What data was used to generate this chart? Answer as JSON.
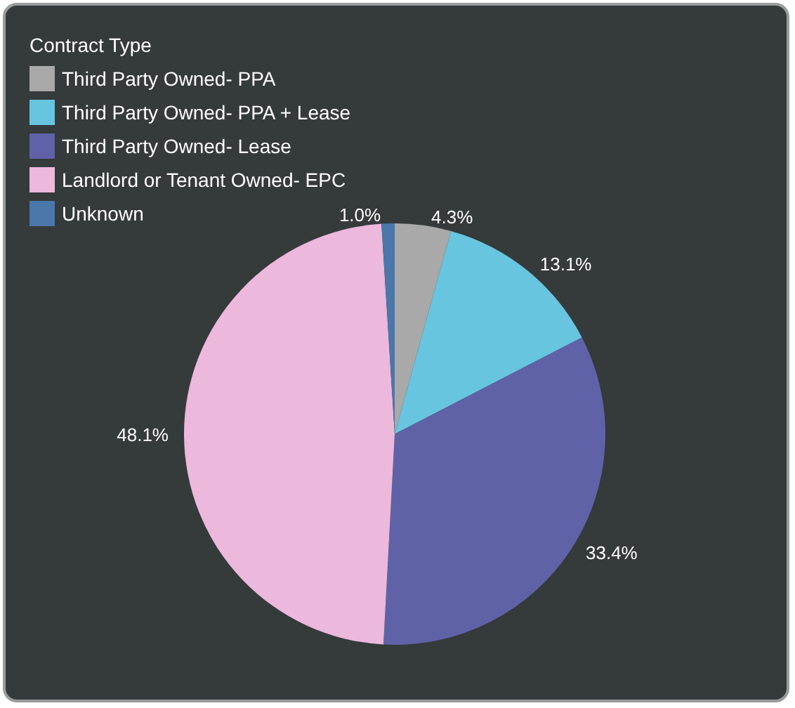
{
  "chart_data": {
    "type": "pie",
    "legend_title": "Contract Type",
    "legend": "top left",
    "categories": [
      "Third Party Owned- PPA",
      "Third Party Owned- PPA + Lease",
      "Third Party Owned- Lease",
      "Landlord or Tenant Owned- EPC",
      "Unknown"
    ],
    "values": [
      4.3,
      13.1,
      33.4,
      48.1,
      1.0
    ],
    "colors": [
      "#a9a9a9",
      "#67c5e0",
      "#6062a8",
      "#ecb8dc",
      "#4b77aa"
    ],
    "value_labels": [
      "4.3%",
      "13.1%",
      "33.4%",
      "48.1%",
      "1.0%"
    ]
  }
}
